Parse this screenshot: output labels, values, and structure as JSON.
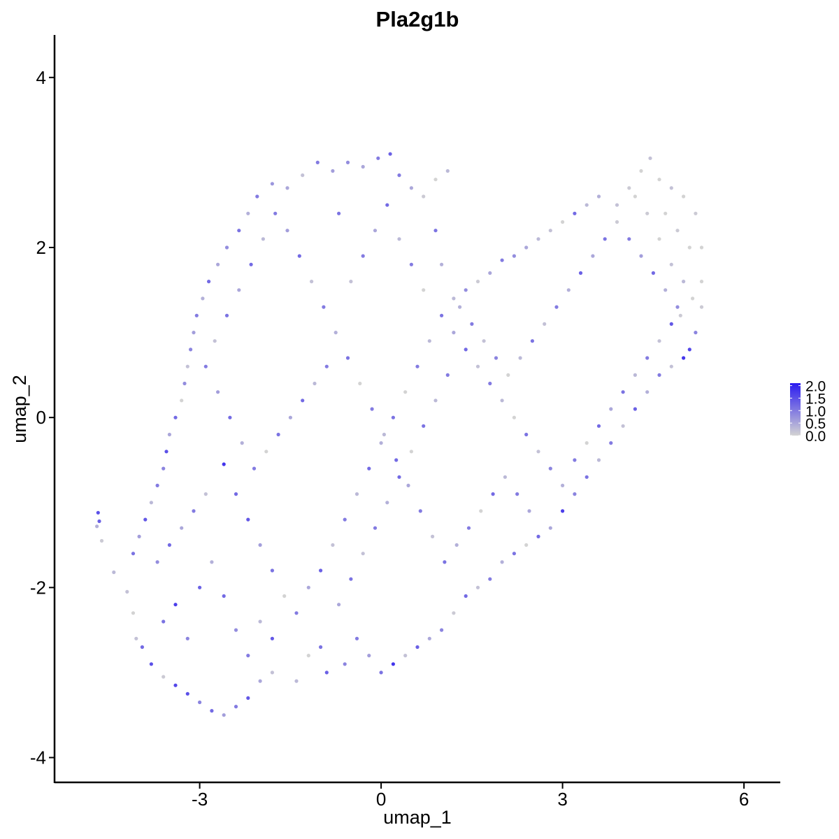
{
  "chart_data": {
    "type": "scatter",
    "title": "Pla2g1b",
    "xlabel": "umap_1",
    "ylabel": "umap_2",
    "xlim": [
      -5.4,
      6.6
    ],
    "ylim": [
      -4.3,
      4.5
    ],
    "x_ticks": [
      {
        "value": -3,
        "label": "-3"
      },
      {
        "value": 0,
        "label": "0"
      },
      {
        "value": 3,
        "label": "3"
      },
      {
        "value": 6,
        "label": "6"
      }
    ],
    "y_ticks": [
      {
        "value": -4,
        "label": "-4"
      },
      {
        "value": -2,
        "label": "-2"
      },
      {
        "value": 0,
        "label": "0"
      },
      {
        "value": 2,
        "label": "2"
      },
      {
        "value": 4,
        "label": "4"
      }
    ],
    "grid": false,
    "legend": {
      "placement": "right",
      "type": "colorbar",
      "range": [
        0.0,
        2.1
      ],
      "ticks": [
        {
          "value": 2.0,
          "label": "2.0"
        },
        {
          "value": 1.5,
          "label": "1.5"
        },
        {
          "value": 1.0,
          "label": "1.0"
        },
        {
          "value": 0.5,
          "label": "0.5"
        },
        {
          "value": 0.0,
          "label": "0.0"
        }
      ],
      "low_color": "#d3d3d3",
      "high_color": "#2b1bf0"
    },
    "points": [
      [
        -4.68,
        -1.12,
        1.5
      ],
      [
        -4.66,
        -1.22,
        1.3
      ],
      [
        -4.7,
        -1.28,
        0.4
      ],
      [
        -4.62,
        -1.45,
        0.1
      ],
      [
        -4.42,
        -1.82,
        0.3
      ],
      [
        -4.2,
        -2.05,
        0.2
      ],
      [
        -4.1,
        -2.3,
        0.0
      ],
      [
        -4.05,
        -2.6,
        0.2
      ],
      [
        -3.95,
        -2.7,
        1.2
      ],
      [
        -3.8,
        -2.9,
        1.5
      ],
      [
        -3.6,
        -3.05,
        0.1
      ],
      [
        -3.4,
        -3.15,
        1.6
      ],
      [
        -3.2,
        -3.25,
        1.5
      ],
      [
        -3.0,
        -3.35,
        0.9
      ],
      [
        -2.8,
        -3.45,
        1.2
      ],
      [
        -2.6,
        -3.5,
        0.6
      ],
      [
        -2.4,
        -3.4,
        1.0
      ],
      [
        -2.2,
        -3.3,
        1.4
      ],
      [
        -2.0,
        -3.1,
        0.5
      ],
      [
        -1.8,
        -3.0,
        0.2
      ],
      [
        -1.4,
        -3.1,
        0.3
      ],
      [
        -1.2,
        -2.8,
        0.0
      ],
      [
        -1.0,
        -2.7,
        1.1
      ],
      [
        -0.9,
        -3.0,
        1.3
      ],
      [
        -0.6,
        -2.9,
        0.9
      ],
      [
        -0.4,
        -2.6,
        1.0
      ],
      [
        -0.2,
        -2.8,
        0.6
      ],
      [
        0.0,
        -3.0,
        1.1
      ],
      [
        0.2,
        -2.9,
        1.8
      ],
      [
        0.4,
        -2.8,
        0.2
      ],
      [
        0.6,
        -2.7,
        1.3
      ],
      [
        0.8,
        -2.6,
        0.5
      ],
      [
        1.0,
        -2.5,
        0.9
      ],
      [
        1.2,
        -2.3,
        0.1
      ],
      [
        1.4,
        -2.1,
        1.2
      ],
      [
        1.6,
        -2.0,
        0.2
      ],
      [
        1.8,
        -1.9,
        1.0
      ],
      [
        2.0,
        -1.7,
        0.4
      ],
      [
        2.2,
        -1.6,
        1.1
      ],
      [
        2.4,
        -1.5,
        0.0
      ],
      [
        2.6,
        -1.4,
        1.2
      ],
      [
        2.8,
        -1.3,
        0.5
      ],
      [
        3.0,
        -1.1,
        1.7
      ],
      [
        3.2,
        -0.9,
        0.9
      ],
      [
        3.4,
        -0.7,
        1.1
      ],
      [
        3.6,
        -0.5,
        0.3
      ],
      [
        3.8,
        -0.3,
        1.0
      ],
      [
        4.0,
        -0.1,
        0.2
      ],
      [
        4.2,
        0.1,
        1.3
      ],
      [
        4.4,
        0.3,
        0.4
      ],
      [
        4.6,
        0.5,
        1.0
      ],
      [
        4.8,
        0.6,
        0.2
      ],
      [
        5.0,
        0.7,
        1.8
      ],
      [
        5.1,
        0.8,
        1.6
      ],
      [
        5.2,
        1.0,
        0.9
      ],
      [
        5.3,
        1.3,
        0.1
      ],
      [
        5.3,
        1.6,
        0.0
      ],
      [
        5.3,
        2.0,
        0.0
      ],
      [
        5.2,
        2.4,
        0.1
      ],
      [
        5.0,
        2.6,
        0.0
      ],
      [
        4.8,
        2.7,
        0.2
      ],
      [
        4.6,
        2.8,
        0.0
      ],
      [
        4.45,
        3.05,
        0.2
      ],
      [
        4.3,
        2.9,
        0.0
      ],
      [
        4.1,
        2.7,
        0.1
      ],
      [
        3.9,
        2.5,
        0.2
      ],
      [
        3.6,
        2.6,
        0.4
      ],
      [
        3.4,
        2.5,
        0.3
      ],
      [
        3.2,
        2.4,
        1.2
      ],
      [
        3.0,
        2.3,
        0.0
      ],
      [
        2.8,
        2.2,
        0.2
      ],
      [
        2.6,
        2.1,
        0.3
      ],
      [
        2.4,
        2.0,
        0.5
      ],
      [
        2.2,
        1.9,
        0.8
      ],
      [
        2.0,
        1.85,
        1.0
      ],
      [
        1.8,
        1.7,
        0.5
      ],
      [
        1.6,
        1.6,
        0.1
      ],
      [
        1.4,
        1.5,
        0.8
      ],
      [
        1.2,
        1.4,
        0.3
      ],
      [
        1.1,
        2.9,
        0.3
      ],
      [
        0.9,
        2.8,
        0.0
      ],
      [
        0.7,
        2.6,
        0.1
      ],
      [
        0.5,
        2.7,
        0.5
      ],
      [
        0.3,
        2.85,
        1.0
      ],
      [
        0.15,
        3.1,
        1.3
      ],
      [
        -0.05,
        3.05,
        1.0
      ],
      [
        -0.3,
        2.95,
        0.5
      ],
      [
        -0.55,
        3.0,
        0.8
      ],
      [
        -0.8,
        2.9,
        0.6
      ],
      [
        -1.05,
        3.0,
        1.0
      ],
      [
        -1.3,
        2.85,
        0.2
      ],
      [
        -1.55,
        2.7,
        0.5
      ],
      [
        -1.8,
        2.75,
        0.7
      ],
      [
        -2.05,
        2.6,
        1.0
      ],
      [
        -2.2,
        2.4,
        0.4
      ],
      [
        -2.35,
        2.2,
        1.1
      ],
      [
        -2.55,
        2.0,
        0.8
      ],
      [
        -2.7,
        1.8,
        0.5
      ],
      [
        -2.85,
        1.6,
        1.2
      ],
      [
        -2.95,
        1.4,
        0.4
      ],
      [
        -3.05,
        1.2,
        1.0
      ],
      [
        -3.1,
        1.0,
        0.6
      ],
      [
        -3.15,
        0.8,
        0.9
      ],
      [
        -3.2,
        0.6,
        0.2
      ],
      [
        -3.25,
        0.4,
        0.8
      ],
      [
        -3.3,
        0.2,
        0.0
      ],
      [
        -3.4,
        0.0,
        1.2
      ],
      [
        -3.5,
        -0.2,
        0.5
      ],
      [
        -3.55,
        -0.4,
        1.5
      ],
      [
        -3.6,
        -0.6,
        0.9
      ],
      [
        -3.7,
        -0.8,
        1.0
      ],
      [
        -3.8,
        -1.0,
        0.3
      ],
      [
        -3.9,
        -1.2,
        1.4
      ],
      [
        -4.0,
        -1.4,
        0.6
      ],
      [
        -4.1,
        -1.6,
        1.1
      ],
      [
        -2.6,
        -0.55,
        1.8
      ],
      [
        -2.4,
        -0.9,
        1.2
      ],
      [
        -2.2,
        -1.2,
        1.4
      ],
      [
        -2.0,
        -1.5,
        0.6
      ],
      [
        -1.8,
        -1.8,
        1.1
      ],
      [
        -1.6,
        -2.1,
        0.0
      ],
      [
        -1.4,
        -2.3,
        1.0
      ],
      [
        -1.2,
        -2.0,
        0.5
      ],
      [
        -1.0,
        -1.8,
        1.3
      ],
      [
        -0.8,
        -1.5,
        0.2
      ],
      [
        -0.6,
        -1.2,
        1.0
      ],
      [
        -0.4,
        -0.9,
        0.3
      ],
      [
        -0.2,
        -0.6,
        1.2
      ],
      [
        0.0,
        -0.3,
        0.4
      ],
      [
        0.2,
        0.0,
        1.1
      ],
      [
        0.4,
        0.3,
        0.0
      ],
      [
        0.6,
        0.6,
        1.0
      ],
      [
        0.8,
        0.9,
        0.3
      ],
      [
        1.0,
        1.2,
        1.1
      ],
      [
        1.2,
        1.0,
        0.5
      ],
      [
        1.4,
        0.8,
        1.2
      ],
      [
        1.6,
        0.6,
        0.2
      ],
      [
        1.8,
        0.4,
        1.0
      ],
      [
        2.0,
        0.2,
        0.3
      ],
      [
        2.2,
        0.0,
        0.0
      ],
      [
        2.4,
        -0.2,
        1.1
      ],
      [
        2.6,
        -0.4,
        0.2
      ],
      [
        2.8,
        -0.6,
        0.9
      ],
      [
        3.0,
        -0.8,
        0.4
      ],
      [
        3.2,
        -0.5,
        1.0
      ],
      [
        3.4,
        -0.3,
        0.0
      ],
      [
        3.6,
        -0.1,
        1.2
      ],
      [
        3.8,
        0.1,
        0.5
      ],
      [
        4.0,
        0.3,
        1.1
      ],
      [
        4.2,
        0.5,
        0.3
      ],
      [
        4.4,
        0.7,
        1.0
      ],
      [
        4.6,
        0.9,
        0.2
      ],
      [
        4.8,
        1.1,
        1.4
      ],
      [
        4.9,
        1.3,
        0.8
      ],
      [
        4.7,
        1.5,
        0.4
      ],
      [
        4.5,
        1.7,
        1.2
      ],
      [
        4.3,
        1.9,
        0.6
      ],
      [
        4.1,
        2.1,
        1.0
      ],
      [
        3.9,
        2.3,
        0.1
      ],
      [
        3.7,
        2.1,
        1.1
      ],
      [
        3.5,
        1.9,
        0.5
      ],
      [
        3.3,
        1.7,
        1.3
      ],
      [
        3.1,
        1.5,
        0.4
      ],
      [
        2.9,
        1.3,
        1.0
      ],
      [
        2.7,
        1.1,
        0.2
      ],
      [
        2.5,
        0.9,
        1.1
      ],
      [
        2.3,
        0.7,
        0.3
      ],
      [
        2.1,
        0.5,
        0.0
      ],
      [
        1.9,
        0.7,
        0.9
      ],
      [
        1.7,
        0.9,
        0.2
      ],
      [
        1.5,
        1.1,
        1.0
      ],
      [
        1.3,
        1.3,
        0.4
      ],
      [
        -0.9,
        0.6,
        1.0
      ],
      [
        -1.1,
        0.4,
        0.3
      ],
      [
        -1.3,
        0.2,
        1.2
      ],
      [
        -1.5,
        0.0,
        0.5
      ],
      [
        -1.7,
        -0.2,
        1.1
      ],
      [
        -1.9,
        -0.4,
        0.0
      ],
      [
        -2.1,
        -0.6,
        1.0
      ],
      [
        -2.3,
        -0.3,
        0.4
      ],
      [
        -2.5,
        0.0,
        1.2
      ],
      [
        -2.7,
        0.3,
        0.6
      ],
      [
        -2.9,
        0.6,
        1.0
      ],
      [
        -2.75,
        0.9,
        0.2
      ],
      [
        -2.55,
        1.2,
        1.1
      ],
      [
        -2.35,
        1.5,
        0.5
      ],
      [
        -2.15,
        1.8,
        1.2
      ],
      [
        -1.95,
        2.1,
        0.3
      ],
      [
        -1.75,
        2.4,
        1.0
      ],
      [
        -1.55,
        2.2,
        0.6
      ],
      [
        -1.35,
        1.9,
        1.2
      ],
      [
        -1.15,
        1.6,
        0.2
      ],
      [
        -0.95,
        1.3,
        1.0
      ],
      [
        -0.75,
        1.0,
        0.4
      ],
      [
        -0.55,
        0.7,
        1.1
      ],
      [
        -0.35,
        0.4,
        0.0
      ],
      [
        -0.15,
        0.1,
        1.0
      ],
      [
        0.05,
        -0.2,
        0.3
      ],
      [
        0.25,
        -0.5,
        1.2
      ],
      [
        0.45,
        -0.8,
        0.5
      ],
      [
        0.65,
        -1.1,
        1.0
      ],
      [
        0.85,
        -1.4,
        0.2
      ],
      [
        1.05,
        -1.7,
        1.1
      ],
      [
        1.25,
        -1.5,
        0.4
      ],
      [
        1.45,
        -1.3,
        1.0
      ],
      [
        1.65,
        -1.1,
        0.0
      ],
      [
        1.85,
        -0.9,
        1.2
      ],
      [
        2.05,
        -0.7,
        0.3
      ],
      [
        2.25,
        -0.9,
        1.0
      ],
      [
        2.45,
        -1.1,
        0.5
      ],
      [
        -3.4,
        -2.2,
        1.7
      ],
      [
        -3.6,
        -2.4,
        1.1
      ],
      [
        -3.2,
        -2.6,
        0.9
      ],
      [
        -3.0,
        -2.0,
        1.3
      ],
      [
        -2.8,
        -1.7,
        0.4
      ],
      [
        -2.6,
        -2.1,
        1.2
      ],
      [
        -2.4,
        -2.5,
        0.8
      ],
      [
        -2.2,
        -2.8,
        1.0
      ],
      [
        -2.0,
        -2.4,
        0.3
      ],
      [
        -1.8,
        -2.6,
        1.4
      ],
      [
        -3.7,
        -1.7,
        0.8
      ],
      [
        -3.5,
        -1.5,
        1.2
      ],
      [
        -3.3,
        -1.3,
        0.5
      ],
      [
        -3.1,
        -1.1,
        1.0
      ],
      [
        -2.9,
        -0.9,
        0.2
      ],
      [
        0.1,
        2.5,
        1.2
      ],
      [
        -0.1,
        2.2,
        0.5
      ],
      [
        -0.3,
        1.9,
        1.0
      ],
      [
        -0.5,
        1.6,
        0.2
      ],
      [
        -0.7,
        2.4,
        1.1
      ],
      [
        0.3,
        2.1,
        0.3
      ],
      [
        0.5,
        1.8,
        1.0
      ],
      [
        0.7,
        1.5,
        0.0
      ],
      [
        0.9,
        2.2,
        1.1
      ],
      [
        1.0,
        1.8,
        0.4
      ],
      [
        1.1,
        0.5,
        1.0
      ],
      [
        0.9,
        0.2,
        0.3
      ],
      [
        0.7,
        -0.1,
        1.1
      ],
      [
        0.5,
        -0.4,
        0.0
      ],
      [
        0.3,
        -0.7,
        1.2
      ],
      [
        0.1,
        -1.0,
        0.4
      ],
      [
        -0.1,
        -1.3,
        1.0
      ],
      [
        -0.3,
        -1.6,
        0.2
      ],
      [
        -0.5,
        -1.9,
        1.1
      ],
      [
        -0.7,
        -2.2,
        0.5
      ],
      [
        4.7,
        2.4,
        0.0
      ],
      [
        4.9,
        2.2,
        0.1
      ],
      [
        5.1,
        2.0,
        0.0
      ],
      [
        4.8,
        1.8,
        0.2
      ],
      [
        4.6,
        2.1,
        0.0
      ],
      [
        4.4,
        2.4,
        0.1
      ],
      [
        4.2,
        2.6,
        0.0
      ],
      [
        5.0,
        1.6,
        0.3
      ],
      [
        5.15,
        1.4,
        0.0
      ],
      [
        4.95,
        1.2,
        0.1
      ]
    ]
  }
}
